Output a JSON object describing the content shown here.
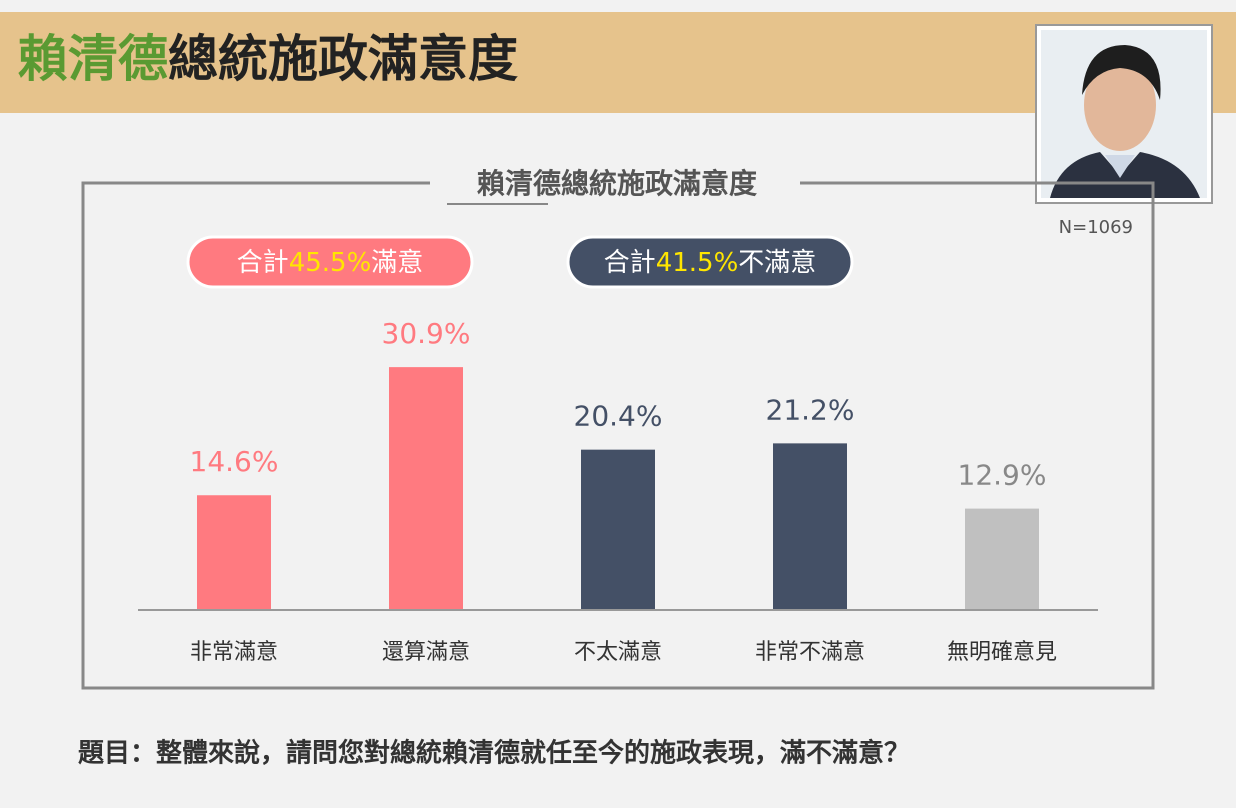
{
  "header": {
    "title_highlight": "賴清德",
    "title_rest": "總統施政滿意度"
  },
  "chart_data": {
    "type": "bar",
    "title": "賴清德總統施政滿意度",
    "note": "N=1069",
    "badges": [
      {
        "prefix": "合計",
        "value": "45.5%",
        "suffix": "滿意"
      },
      {
        "prefix": "合計",
        "value": "41.5%",
        "suffix": "不滿意"
      }
    ],
    "categories": [
      "非常滿意",
      "還算滿意",
      "不太滿意",
      "非常不滿意",
      "無明確意見"
    ],
    "values": [
      14.6,
      30.9,
      20.4,
      21.2,
      12.9
    ],
    "value_labels": [
      "14.6%",
      "30.9%",
      "20.4%",
      "21.2%",
      "12.9%"
    ],
    "colors": [
      "#ff7a80",
      "#ff7a80",
      "#445066",
      "#445066",
      "#c0c0c0"
    ]
  },
  "question": "題目：整體來說，請問您對總統賴清德就任至今的施政表現，滿不滿意？"
}
